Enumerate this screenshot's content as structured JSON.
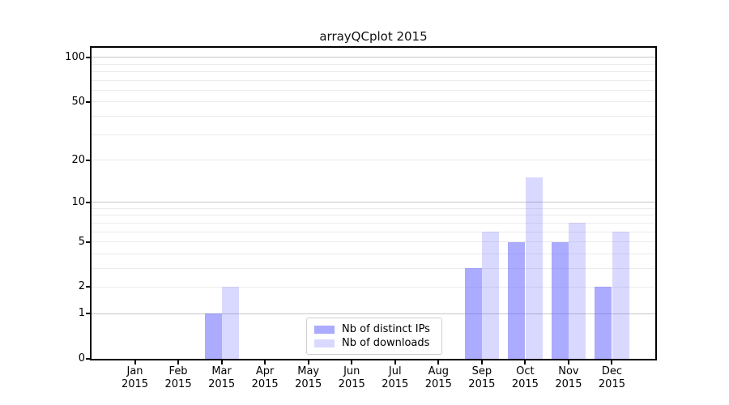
{
  "title": "arrayQCplot 2015",
  "chart_data": {
    "type": "bar",
    "title": "arrayQCplot 2015",
    "categories": [
      "Jan",
      "Feb",
      "Mar",
      "Apr",
      "May",
      "Jun",
      "Jul",
      "Aug",
      "Sep",
      "Oct",
      "Nov",
      "Dec"
    ],
    "year_label": "2015",
    "series": [
      {
        "name": "Nb of distinct IPs",
        "color": "rgba(102,102,255,0.55)",
        "values": [
          0,
          0,
          1,
          0,
          0,
          0,
          0,
          0,
          3,
          5,
          5,
          2
        ]
      },
      {
        "name": "Nb of downloads",
        "color": "rgba(102,102,255,0.25)",
        "values": [
          0,
          0,
          2,
          0,
          0,
          0,
          0,
          0,
          6,
          15,
          7,
          6
        ]
      }
    ],
    "yscale": "log1p",
    "ylim": [
      0,
      116
    ],
    "ytick_labels": [
      0,
      1,
      2,
      5,
      10,
      20,
      50,
      100
    ],
    "grid_major_values": [
      1,
      10,
      100
    ],
    "grid_minor_values": [
      2,
      3,
      4,
      5,
      6,
      7,
      8,
      9,
      20,
      30,
      40,
      50,
      60,
      70,
      80,
      90
    ],
    "xlabel": "",
    "ylabel": "",
    "legend_position": "lower center",
    "colors": {
      "bar_base": "#6666ff",
      "grid_major": "#c6c6c6",
      "grid_minor": "#ebebeb",
      "spine": "#000000",
      "background": "#ffffff"
    }
  },
  "legend": {
    "items": [
      {
        "label": "Nb of distinct IPs"
      },
      {
        "label": "Nb of downloads"
      }
    ]
  }
}
